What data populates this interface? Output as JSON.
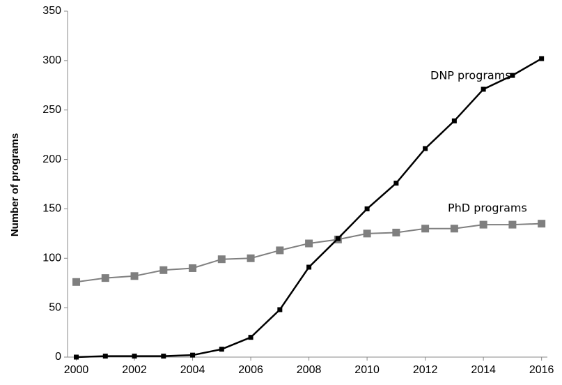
{
  "chart_data": {
    "type": "line",
    "y_label": "Number of programs",
    "annotations": [
      "DNP programs",
      "PhD programs"
    ],
    "x": [
      2000,
      2001,
      2002,
      2003,
      2004,
      2005,
      2006,
      2007,
      2008,
      2009,
      2010,
      2011,
      2012,
      2013,
      2014,
      2015,
      2016
    ],
    "series": [
      {
        "name": "DNP programs",
        "color": "#000000",
        "values": [
          0,
          1,
          1,
          1,
          2,
          8,
          20,
          48,
          91,
          120,
          150,
          176,
          211,
          239,
          271,
          285,
          302
        ]
      },
      {
        "name": "PhD programs",
        "color": "#7f7f7f",
        "values": [
          76,
          80,
          82,
          88,
          90,
          99,
          100,
          108,
          115,
          119,
          125,
          126,
          130,
          130,
          134,
          134,
          135
        ]
      }
    ],
    "xlim": [
      1999.7,
      2016.2
    ],
    "xticks": [
      2000,
      2002,
      2004,
      2006,
      2008,
      2010,
      2012,
      2014,
      2016
    ],
    "ylim": [
      0,
      350
    ],
    "yticks": [
      0,
      50,
      100,
      150,
      200,
      250,
      300,
      350
    ],
    "grid": false
  }
}
